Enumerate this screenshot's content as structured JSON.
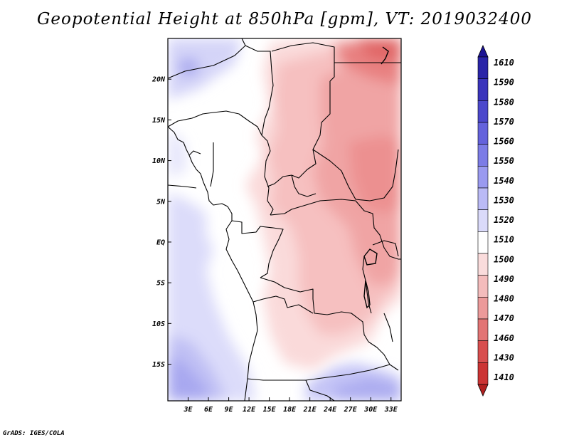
{
  "title": "Geopotential Height at 850hPa [gpm], VT: 2019032400",
  "credit": "GrADS: IGES/COLA",
  "map": {
    "lat_labels": [
      "20N",
      "15N",
      "10N",
      "5N",
      "EQ",
      "5S",
      "10S",
      "15S"
    ],
    "lat_values": [
      20,
      15,
      10,
      5,
      0,
      -5,
      -10,
      -15
    ],
    "lon_labels": [
      "3E",
      "6E",
      "9E",
      "12E",
      "15E",
      "18E",
      "21E",
      "24E",
      "27E",
      "30E",
      "33E"
    ],
    "lon_values": [
      3,
      6,
      9,
      12,
      15,
      18,
      21,
      24,
      27,
      30,
      33
    ],
    "lon_range": [
      0,
      34.5
    ],
    "lat_range": [
      -19.5,
      25
    ]
  },
  "colorbar": {
    "labels": [
      "1610",
      "1590",
      "1580",
      "1570",
      "1560",
      "1550",
      "1540",
      "1530",
      "1520",
      "1510",
      "1500",
      "1490",
      "1480",
      "1470",
      "1460",
      "1430",
      "1410"
    ],
    "colors": [
      "#1c1494",
      "#2a24a8",
      "#3a34bc",
      "#4c48cc",
      "#6462dc",
      "#7c7ce6",
      "#9a9af0",
      "#babaf6",
      "#dadafa",
      "#ffffff",
      "#fadcdc",
      "#f4bcbc",
      "#ec9a9a",
      "#e27474",
      "#d84e4e",
      "#cc3434",
      "#b22020"
    ]
  }
}
